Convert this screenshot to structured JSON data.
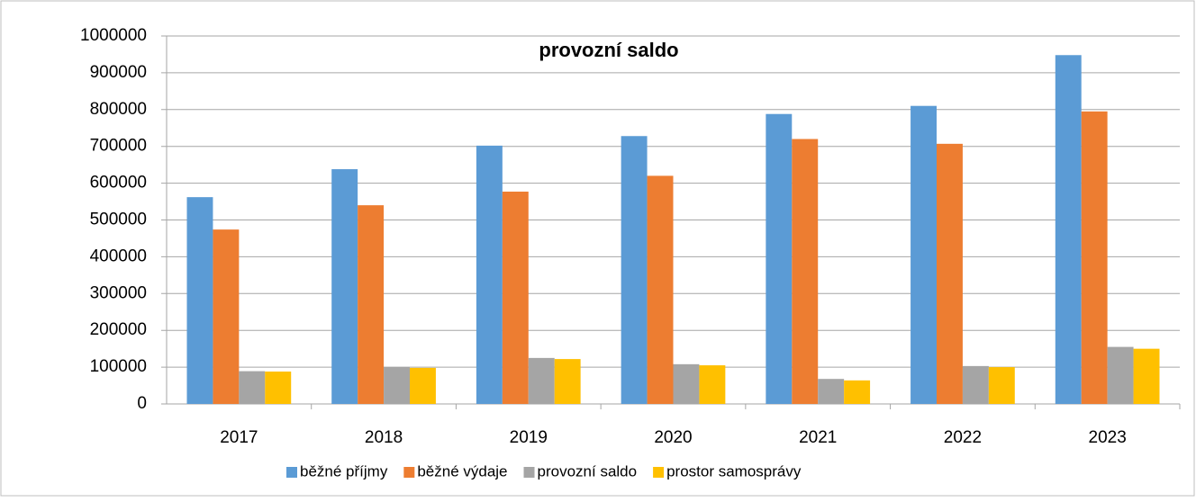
{
  "chart_data": {
    "type": "bar",
    "title": "provozní saldo",
    "categories": [
      "2017",
      "2018",
      "2019",
      "2020",
      "2021",
      "2022",
      "2023"
    ],
    "series": [
      {
        "name": "běžné příjmy",
        "color": "#5b9bd5",
        "values": [
          562000,
          638000,
          702000,
          728000,
          788000,
          810000,
          948000
        ]
      },
      {
        "name": "běžné výdaje",
        "color": "#ed7d31",
        "values": [
          474000,
          540000,
          577000,
          620000,
          720000,
          707000,
          795000
        ]
      },
      {
        "name": "provozní saldo",
        "color": "#a5a5a5",
        "values": [
          89000,
          100000,
          125000,
          108000,
          68000,
          103000,
          155000
        ]
      },
      {
        "name": "prostor samosprávy",
        "color": "#ffc000",
        "values": [
          88000,
          98000,
          122000,
          105000,
          64000,
          100000,
          150000
        ]
      }
    ],
    "ylim": [
      0,
      1000000
    ],
    "yticks": [
      0,
      100000,
      200000,
      300000,
      400000,
      500000,
      600000,
      700000,
      800000,
      900000,
      1000000
    ],
    "grid": true,
    "legend": "bottom"
  }
}
